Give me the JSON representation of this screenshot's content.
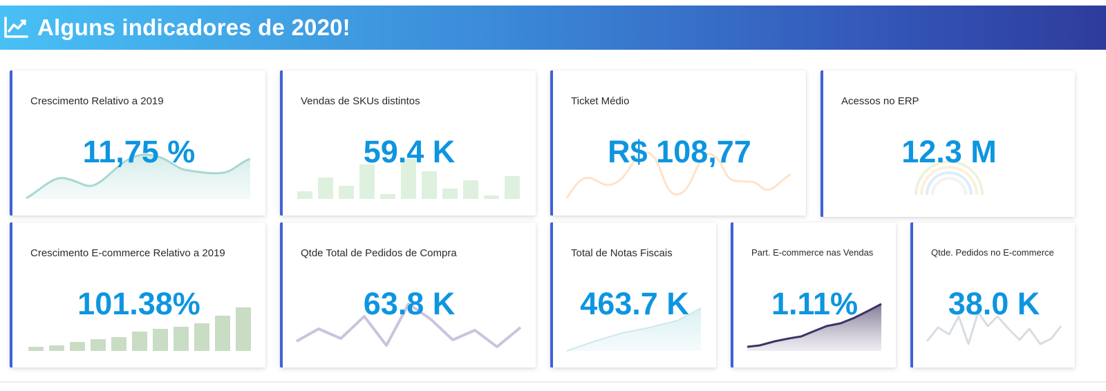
{
  "header": {
    "title": "Alguns indicadores de 2020!",
    "icon": "trend-chart-icon"
  },
  "colors": {
    "accent_border": "#3f62d6",
    "value_text": "#0e95e0",
    "header_start": "#48c0f5",
    "header_end": "#2e3c9c"
  },
  "cards": [
    {
      "title": "Crescimento Relativo a 2019",
      "value": "11,75 %",
      "spark": "area"
    },
    {
      "title": "Vendas de SKUs distintos",
      "value": "59.4 K",
      "spark": "bar"
    },
    {
      "title": "Ticket Médio",
      "value": "R$ 108,77",
      "spark": "line"
    },
    {
      "title": "Acessos no ERP",
      "value": "12.3 M",
      "spark": "rainbow"
    },
    {
      "title": "Crescimento E-commerce Relativo a 2019",
      "value": "101.38%",
      "spark": "bar"
    },
    {
      "title": "Qtde Total de Pedidos de Compra",
      "value": "63.8 K",
      "spark": "line"
    },
    {
      "title": "Total de Notas Fiscais",
      "value": "463.7 K",
      "spark": "area"
    },
    {
      "title": "Part. E-commerce nas Vendas",
      "value": "1.11%",
      "spark": "area"
    },
    {
      "title": "Qtde. Pedidos no E-commerce",
      "value": "38.0 K",
      "spark": "line"
    }
  ]
}
